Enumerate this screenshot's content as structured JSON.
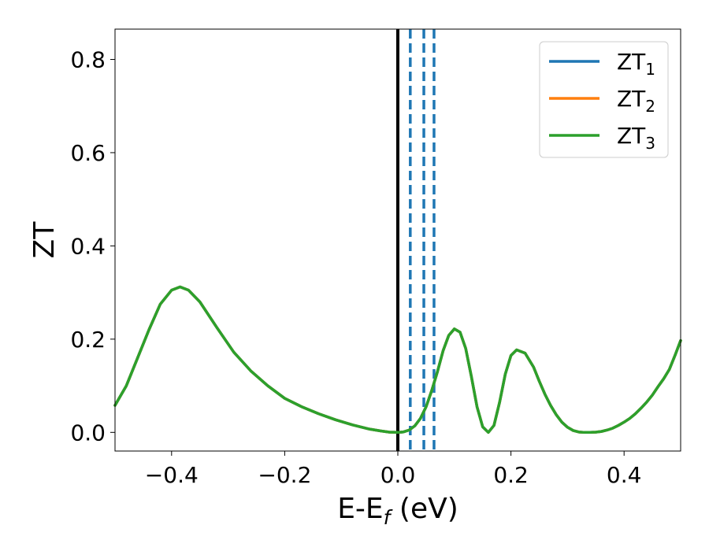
{
  "chart_data": {
    "type": "line",
    "xlabel": "E-E",
    "xlabel_sub": "f",
    "xlabel_unit": " (eV)",
    "ylabel": "ZT",
    "xlim": [
      -0.5,
      0.5
    ],
    "ylim": [
      -0.04,
      0.865
    ],
    "xticks": [
      -0.4,
      -0.2,
      0.0,
      0.2,
      0.4
    ],
    "xtick_labels": [
      "−0.4",
      "−0.2",
      "0.0",
      "0.2",
      "0.4"
    ],
    "yticks": [
      0.0,
      0.2,
      0.4,
      0.6,
      0.8
    ],
    "ytick_labels": [
      "0.0",
      "0.2",
      "0.4",
      "0.6",
      "0.8"
    ],
    "grid": false,
    "legend_position": "top-right",
    "series": [
      {
        "name": "ZT",
        "name_sub": "1",
        "color": "#1f77b4",
        "x": [
          -0.5,
          -0.48,
          -0.46,
          -0.44,
          -0.42,
          -0.4,
          -0.385,
          -0.37,
          -0.35,
          -0.32,
          -0.29,
          -0.26,
          -0.23,
          -0.2,
          -0.17,
          -0.14,
          -0.11,
          -0.08,
          -0.05,
          -0.03,
          -0.015,
          0.0,
          0.01,
          0.02,
          0.03,
          0.04,
          0.05,
          0.06,
          0.07,
          0.08,
          0.09,
          0.1,
          0.11,
          0.12,
          0.13,
          0.14,
          0.15,
          0.16,
          0.17,
          0.18,
          0.19,
          0.2,
          0.21,
          0.225,
          0.24,
          0.25,
          0.26,
          0.27,
          0.28,
          0.29,
          0.3,
          0.31,
          0.32,
          0.33,
          0.34,
          0.35,
          0.36,
          0.37,
          0.38,
          0.39,
          0.4,
          0.41,
          0.42,
          0.43,
          0.44,
          0.45,
          0.46,
          0.47,
          0.48,
          0.49,
          0.5
        ],
        "y": [
          0.058,
          0.1,
          0.16,
          0.22,
          0.275,
          0.305,
          0.312,
          0.305,
          0.28,
          0.225,
          0.172,
          0.132,
          0.1,
          0.073,
          0.055,
          0.04,
          0.027,
          0.016,
          0.007,
          0.003,
          0.0005,
          0.0,
          0.001,
          0.005,
          0.014,
          0.03,
          0.055,
          0.09,
          0.13,
          0.175,
          0.208,
          0.222,
          0.215,
          0.18,
          0.12,
          0.055,
          0.012,
          0.0,
          0.015,
          0.065,
          0.125,
          0.165,
          0.177,
          0.17,
          0.14,
          0.11,
          0.082,
          0.058,
          0.038,
          0.022,
          0.011,
          0.004,
          0.0008,
          0.0,
          0.0,
          0.0005,
          0.002,
          0.005,
          0.009,
          0.015,
          0.022,
          0.03,
          0.04,
          0.052,
          0.065,
          0.08,
          0.098,
          0.115,
          0.135,
          0.165,
          0.197
        ]
      },
      {
        "name": "ZT",
        "name_sub": "2",
        "color": "#ff7f0e",
        "x": [
          -0.5,
          -0.48,
          -0.46,
          -0.44,
          -0.42,
          -0.4,
          -0.385,
          -0.37,
          -0.35,
          -0.32,
          -0.29,
          -0.26,
          -0.23,
          -0.2,
          -0.17,
          -0.14,
          -0.11,
          -0.08,
          -0.05,
          -0.03,
          -0.015,
          0.0,
          0.01,
          0.02,
          0.03,
          0.04,
          0.05,
          0.06,
          0.07,
          0.08,
          0.09,
          0.1,
          0.11,
          0.12,
          0.13,
          0.14,
          0.15,
          0.16,
          0.17,
          0.18,
          0.19,
          0.2,
          0.21,
          0.225,
          0.24,
          0.25,
          0.26,
          0.27,
          0.28,
          0.29,
          0.3,
          0.31,
          0.32,
          0.33,
          0.34,
          0.35,
          0.36,
          0.37,
          0.38,
          0.39,
          0.4,
          0.41,
          0.42,
          0.43,
          0.44,
          0.45,
          0.46,
          0.47,
          0.48,
          0.49,
          0.5
        ],
        "y": [
          0.058,
          0.1,
          0.16,
          0.22,
          0.275,
          0.305,
          0.312,
          0.305,
          0.28,
          0.225,
          0.172,
          0.132,
          0.1,
          0.073,
          0.055,
          0.04,
          0.027,
          0.016,
          0.007,
          0.003,
          0.0005,
          0.0,
          0.001,
          0.005,
          0.014,
          0.03,
          0.055,
          0.09,
          0.13,
          0.175,
          0.208,
          0.222,
          0.215,
          0.18,
          0.12,
          0.055,
          0.012,
          0.0,
          0.015,
          0.065,
          0.125,
          0.165,
          0.177,
          0.17,
          0.14,
          0.11,
          0.082,
          0.058,
          0.038,
          0.022,
          0.011,
          0.004,
          0.0008,
          0.0,
          0.0,
          0.0005,
          0.002,
          0.005,
          0.009,
          0.015,
          0.022,
          0.03,
          0.04,
          0.052,
          0.065,
          0.08,
          0.098,
          0.115,
          0.135,
          0.165,
          0.197
        ]
      },
      {
        "name": "ZT",
        "name_sub": "3",
        "color": "#2ca02c",
        "x": [
          -0.5,
          -0.48,
          -0.46,
          -0.44,
          -0.42,
          -0.4,
          -0.385,
          -0.37,
          -0.35,
          -0.32,
          -0.29,
          -0.26,
          -0.23,
          -0.2,
          -0.17,
          -0.14,
          -0.11,
          -0.08,
          -0.05,
          -0.03,
          -0.015,
          0.0,
          0.01,
          0.02,
          0.03,
          0.04,
          0.05,
          0.06,
          0.07,
          0.08,
          0.09,
          0.1,
          0.11,
          0.12,
          0.13,
          0.14,
          0.15,
          0.16,
          0.17,
          0.18,
          0.19,
          0.2,
          0.21,
          0.225,
          0.24,
          0.25,
          0.26,
          0.27,
          0.28,
          0.29,
          0.3,
          0.31,
          0.32,
          0.33,
          0.34,
          0.35,
          0.36,
          0.37,
          0.38,
          0.39,
          0.4,
          0.41,
          0.42,
          0.43,
          0.44,
          0.45,
          0.46,
          0.47,
          0.48,
          0.49,
          0.5
        ],
        "y": [
          0.058,
          0.1,
          0.16,
          0.22,
          0.275,
          0.305,
          0.312,
          0.305,
          0.28,
          0.225,
          0.172,
          0.132,
          0.1,
          0.073,
          0.055,
          0.04,
          0.027,
          0.016,
          0.007,
          0.003,
          0.0005,
          0.0,
          0.001,
          0.005,
          0.014,
          0.03,
          0.055,
          0.09,
          0.13,
          0.175,
          0.208,
          0.222,
          0.215,
          0.18,
          0.12,
          0.055,
          0.012,
          0.0,
          0.015,
          0.065,
          0.125,
          0.165,
          0.177,
          0.17,
          0.14,
          0.11,
          0.082,
          0.058,
          0.038,
          0.022,
          0.011,
          0.004,
          0.0008,
          0.0,
          0.0,
          0.0005,
          0.002,
          0.005,
          0.009,
          0.015,
          0.022,
          0.03,
          0.04,
          0.052,
          0.065,
          0.08,
          0.098,
          0.115,
          0.135,
          0.165,
          0.197
        ]
      }
    ],
    "vertical_lines": [
      {
        "x": 0.0,
        "style": "solid",
        "color": "#000000"
      },
      {
        "x": 0.022,
        "style": "dashed",
        "color": "#1f77b4"
      },
      {
        "x": 0.046,
        "style": "dashed",
        "color": "#1f77b4"
      },
      {
        "x": 0.064,
        "style": "dashed",
        "color": "#1f77b4"
      }
    ]
  }
}
